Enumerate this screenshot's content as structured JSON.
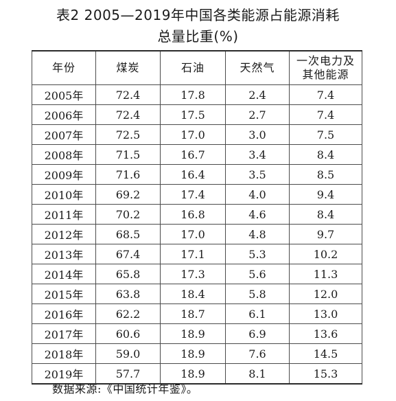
{
  "title_line1": "表2 2005—2019年中国各类能源占能源消耗",
  "title_line2": "总量比重(%)",
  "headers": {
    "year": "年份",
    "coal": "煤炭",
    "oil": "石油",
    "gas": "天然气",
    "other_line1": "一次电力及",
    "other_line2": "其他能源"
  },
  "rows": [
    {
      "year": "2005年",
      "coal": "72.4",
      "oil": "17.8",
      "gas": "2.4",
      "other": "7.4"
    },
    {
      "year": "2006年",
      "coal": "72.4",
      "oil": "17.5",
      "gas": "2.7",
      "other": "7.4"
    },
    {
      "year": "2007年",
      "coal": "72.5",
      "oil": "17.0",
      "gas": "3.0",
      "other": "7.5"
    },
    {
      "year": "2008年",
      "coal": "71.5",
      "oil": "16.7",
      "gas": "3.4",
      "other": "8.4"
    },
    {
      "year": "2009年",
      "coal": "71.6",
      "oil": "16.4",
      "gas": "3.5",
      "other": "8.5"
    },
    {
      "year": "2010年",
      "coal": "69.2",
      "oil": "17.4",
      "gas": "4.0",
      "other": "9.4"
    },
    {
      "year": "2011年",
      "coal": "70.2",
      "oil": "16.8",
      "gas": "4.6",
      "other": "8.4"
    },
    {
      "year": "2012年",
      "coal": "68.5",
      "oil": "17.0",
      "gas": "4.8",
      "other": "9.7"
    },
    {
      "year": "2013年",
      "coal": "67.4",
      "oil": "17.1",
      "gas": "5.3",
      "other": "10.2"
    },
    {
      "year": "2014年",
      "coal": "65.8",
      "oil": "17.3",
      "gas": "5.6",
      "other": "11.3"
    },
    {
      "year": "2015年",
      "coal": "63.8",
      "oil": "18.4",
      "gas": "5.8",
      "other": "12.0"
    },
    {
      "year": "2016年",
      "coal": "62.2",
      "oil": "18.7",
      "gas": "6.1",
      "other": "13.0"
    },
    {
      "year": "2017年",
      "coal": "60.6",
      "oil": "18.9",
      "gas": "6.9",
      "other": "13.6"
    },
    {
      "year": "2018年",
      "coal": "59.0",
      "oil": "18.9",
      "gas": "7.6",
      "other": "14.5"
    },
    {
      "year": "2019年",
      "coal": "57.7",
      "oil": "18.9",
      "gas": "8.1",
      "other": "15.3"
    }
  ],
  "source": "数据来源:《中国统计年鉴》。"
}
